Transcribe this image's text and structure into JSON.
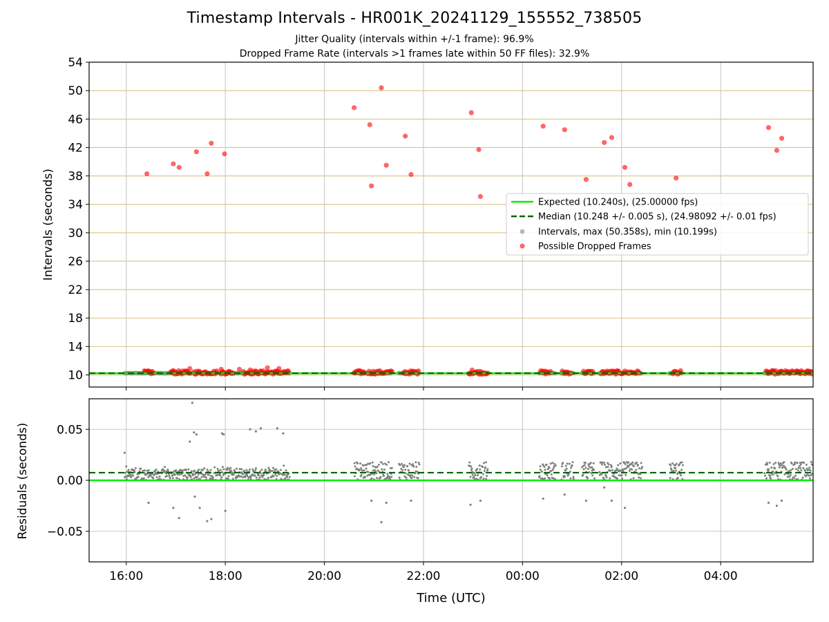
{
  "title": "Timestamp Intervals - HR001K_20241129_155552_738505",
  "subtitle_1": "Jitter Quality (intervals within +/-1 frame): 96.9%",
  "subtitle_2": "Dropped Frame Rate (intervals >1 frames late within 50 FF files): 32.9%",
  "colors": {
    "expected": "#00ee00",
    "median": "#006400",
    "intervals": "#808080",
    "dropped": "#ff0000",
    "hgrid_top": "#d8c484",
    "grid": "#c8c8c8"
  },
  "chart_data": [
    {
      "type": "scatter",
      "ylabel": "Intervals (seconds)",
      "xlim": [
        "15:15",
        "05:52"
      ],
      "ylim": [
        8.3,
        54
      ],
      "yticks": [
        10,
        14,
        18,
        22,
        26,
        30,
        34,
        38,
        42,
        46,
        50,
        54
      ],
      "xticks": [
        "16:00",
        "18:00",
        "20:00",
        "22:00",
        "00:00",
        "02:00",
        "04:00"
      ],
      "grid": "on",
      "legend_position": "right",
      "legend": [
        "Expected (10.240s), (25.00000 fps)",
        "Median (10.248 +/- 0.005 s), (24.98092 +/- 0.01 fps)",
        "Intervals, max (50.358s), min (10.199s)",
        "Possible Dropped Frames"
      ],
      "expected": 10.24,
      "median": 10.248,
      "series": [
        {
          "name": "Possible Dropped Frames",
          "points": [
            [
              "16:25",
              38.3
            ],
            [
              "16:57",
              39.7
            ],
            [
              "17:04",
              39.2
            ],
            [
              "17:25",
              41.4
            ],
            [
              "17:38",
              38.3
            ],
            [
              "17:43",
              42.6
            ],
            [
              "17:59",
              41.1
            ],
            [
              "20:36",
              47.6
            ],
            [
              "20:55",
              45.2
            ],
            [
              "20:57",
              36.6
            ],
            [
              "21:09",
              50.4
            ],
            [
              "21:15",
              39.5
            ],
            [
              "21:38",
              43.6
            ],
            [
              "21:45",
              38.2
            ],
            [
              "22:58",
              46.9
            ],
            [
              "23:07",
              41.7
            ],
            [
              "23:09",
              35.1
            ],
            [
              "00:25",
              45.0
            ],
            [
              "00:51",
              44.5
            ],
            [
              "01:17",
              37.5
            ],
            [
              "01:39",
              42.7
            ],
            [
              "01:48",
              43.4
            ],
            [
              "02:04",
              39.2
            ],
            [
              "02:10",
              36.8
            ],
            [
              "03:06",
              37.7
            ],
            [
              "04:58",
              44.8
            ],
            [
              "05:08",
              41.6
            ],
            [
              "05:14",
              43.3
            ]
          ]
        }
      ]
    },
    {
      "type": "scatter",
      "ylabel": "Residuals (seconds)",
      "xlabel": "Time (UTC)",
      "xlim": [
        "15:15",
        "05:52"
      ],
      "ylim": [
        -0.08,
        0.08
      ],
      "yticks": [
        "−0.05",
        "0.00",
        "0.05"
      ],
      "xticks": [
        "16:00",
        "18:00",
        "20:00",
        "22:00",
        "00:00",
        "02:00",
        "04:00"
      ],
      "grid": "on",
      "expected_residual": 0.0,
      "median_residual": 0.0075,
      "series": [
        {
          "name": "Residuals",
          "outliers": [
            [
              "15:58",
              0.027
            ],
            [
              "16:27",
              -0.022
            ],
            [
              "16:57",
              -0.027
            ],
            [
              "17:04",
              -0.037
            ],
            [
              "17:17",
              0.038
            ],
            [
              "17:20",
              0.076
            ],
            [
              "17:22",
              0.047
            ],
            [
              "17:23",
              -0.016
            ],
            [
              "17:25",
              0.045
            ],
            [
              "17:29",
              -0.027
            ],
            [
              "17:38",
              -0.04
            ],
            [
              "17:43",
              -0.038
            ],
            [
              "17:56",
              0.046
            ],
            [
              "17:58",
              0.045
            ],
            [
              "18:00",
              -0.03
            ],
            [
              "18:30",
              0.05
            ],
            [
              "18:37",
              0.048
            ],
            [
              "18:43",
              0.051
            ],
            [
              "19:03",
              0.051
            ],
            [
              "19:10",
              0.046
            ],
            [
              "20:57",
              -0.02
            ],
            [
              "21:09",
              -0.041
            ],
            [
              "21:15",
              -0.022
            ],
            [
              "21:45",
              -0.02
            ],
            [
              "22:57",
              -0.024
            ],
            [
              "23:09",
              -0.02
            ],
            [
              "00:25",
              -0.018
            ],
            [
              "00:51",
              -0.014
            ],
            [
              "01:17",
              -0.02
            ],
            [
              "01:39",
              -0.007
            ],
            [
              "01:48",
              -0.02
            ],
            [
              "02:04",
              -0.027
            ],
            [
              "04:58",
              -0.022
            ],
            [
              "05:08",
              -0.025
            ],
            [
              "05:14",
              -0.02
            ]
          ]
        }
      ]
    }
  ]
}
